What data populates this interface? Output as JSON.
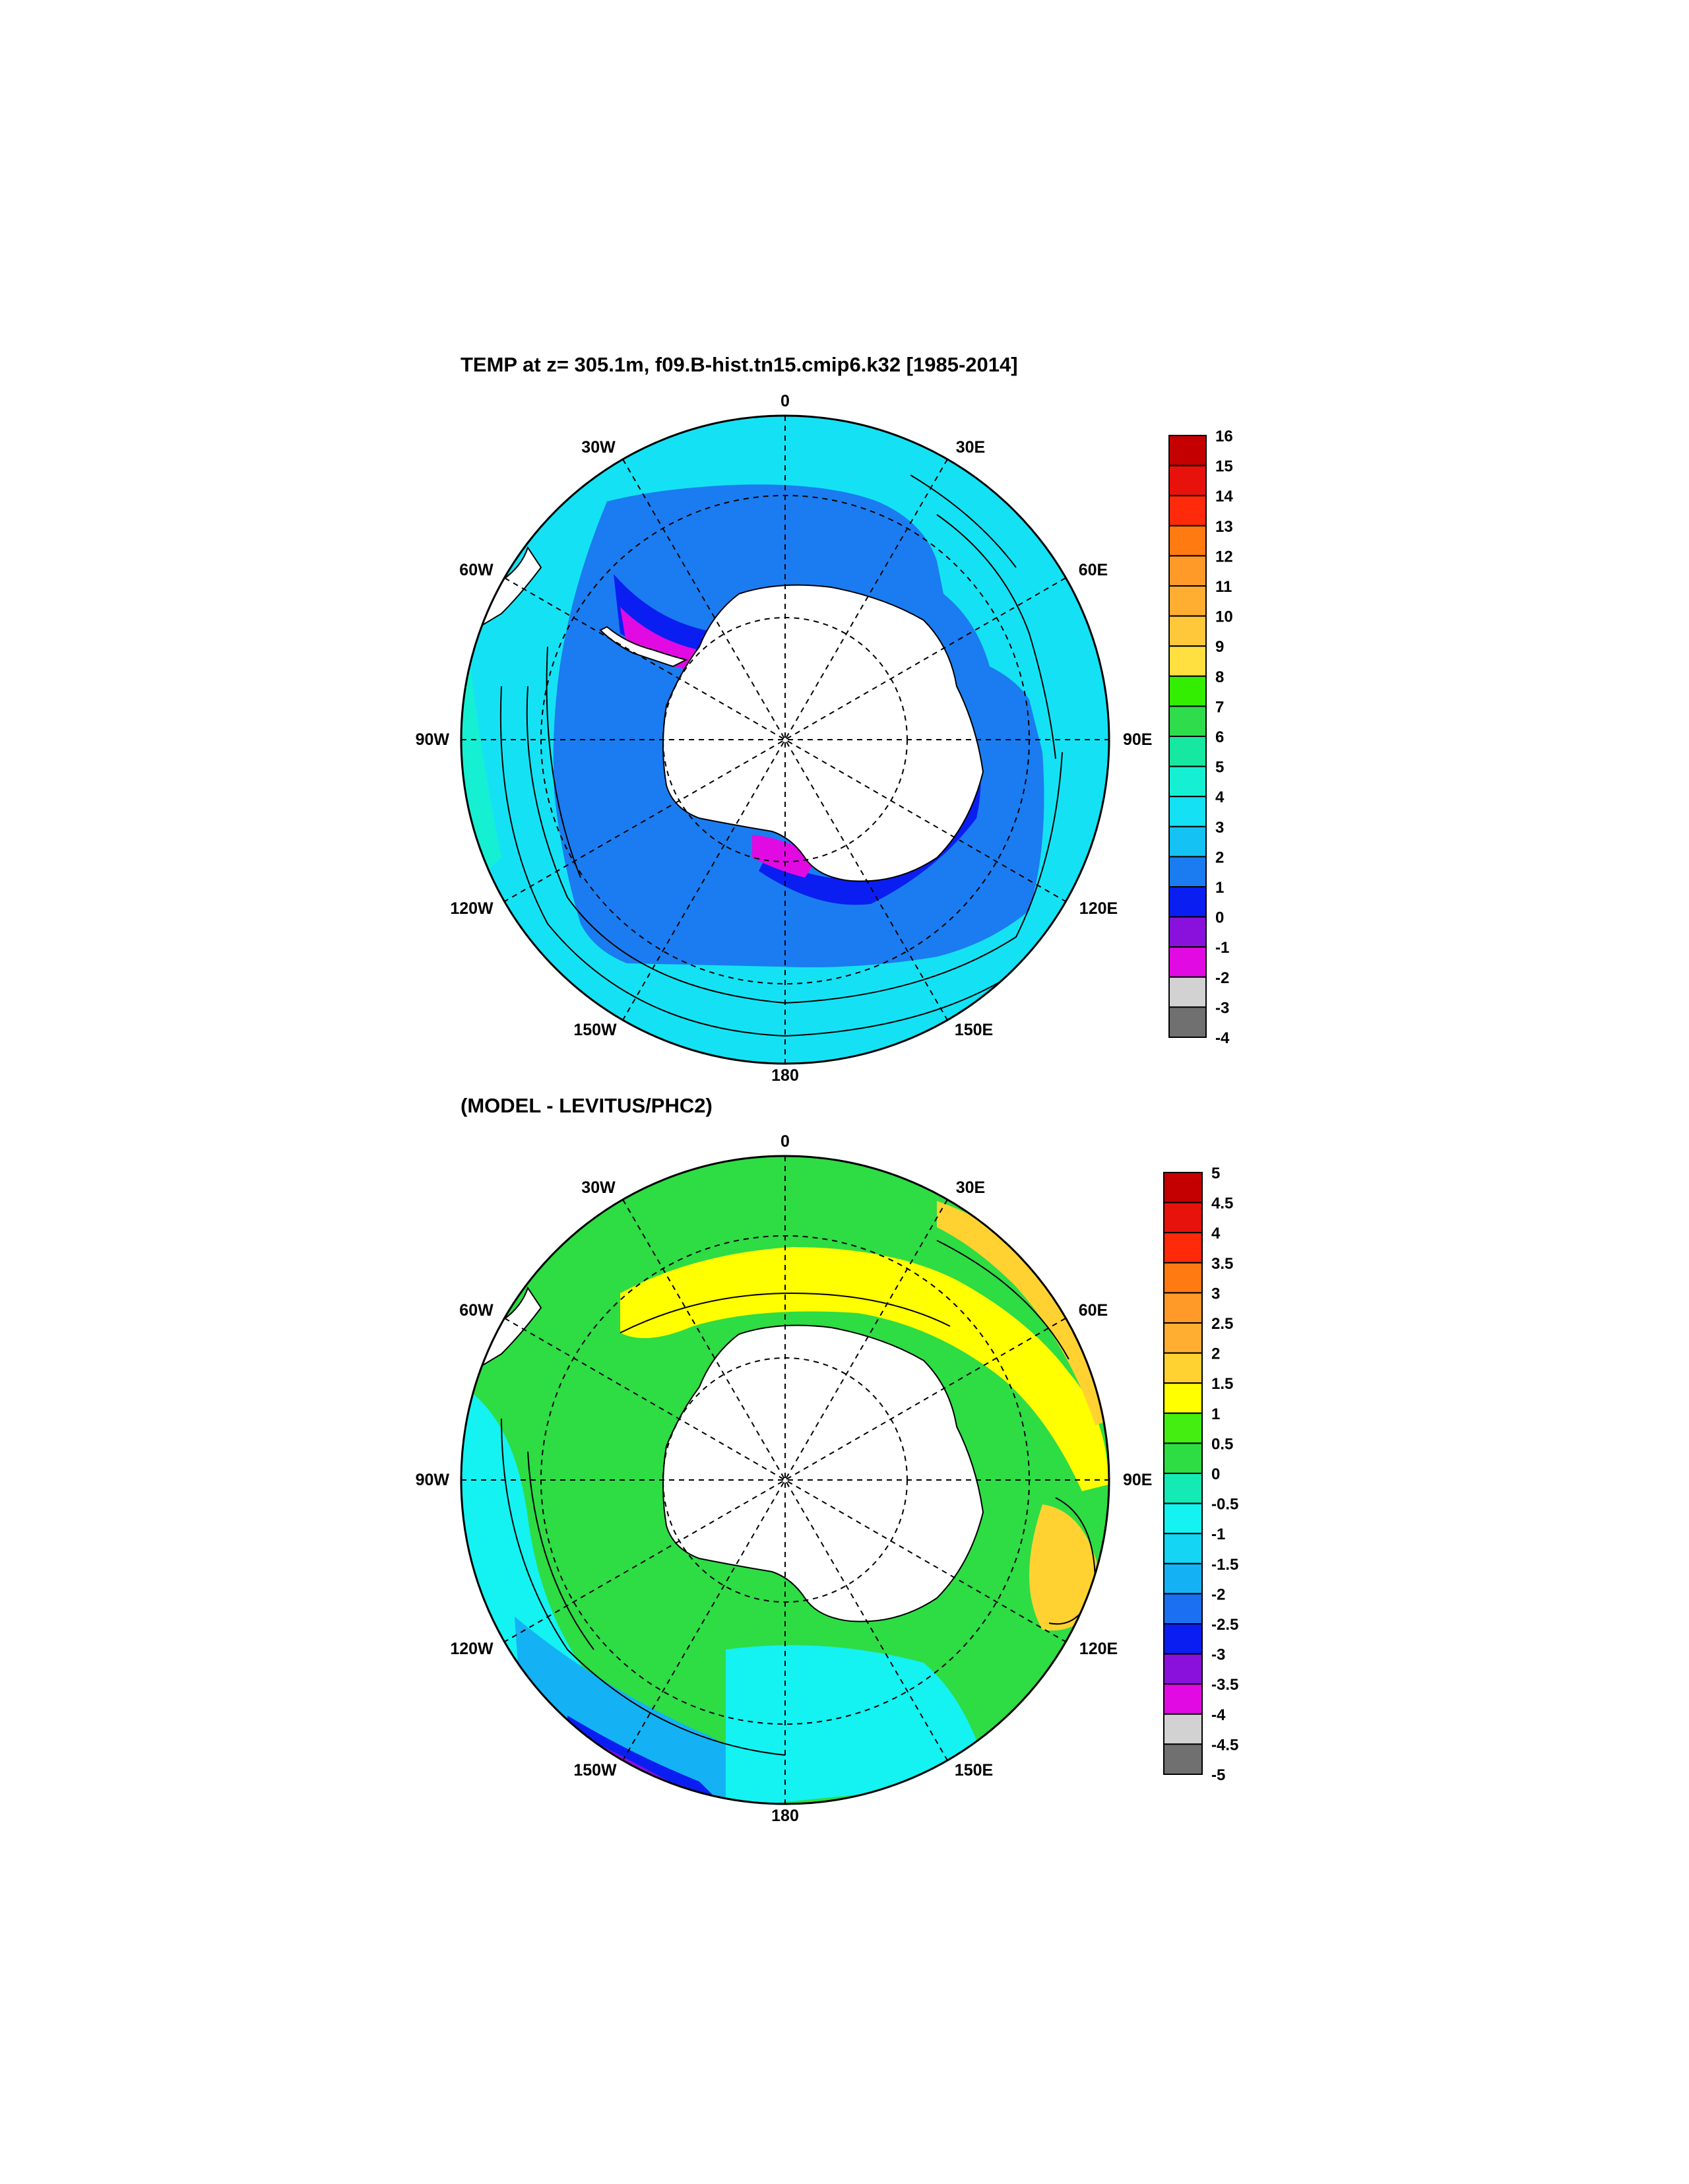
{
  "panels": [
    {
      "title": "TEMP at z= 305.1m, f09.B-hist.tn15.cmip6.k32 [1985-2014]",
      "lon_labels": {
        "top": "0",
        "top_left": "30W",
        "top_right": "30E",
        "upper_left": "60W",
        "upper_right": "60E",
        "left": "90W",
        "right": "90E",
        "lower_left": "120W",
        "lower_right": "120E",
        "bottom_left": "150W",
        "bottom_right": "150E",
        "bottom": "180"
      },
      "colorbar": {
        "labels": [
          "16",
          "15",
          "14",
          "13",
          "12",
          "11",
          "10",
          "9",
          "8",
          "7",
          "6",
          "5",
          "4",
          "3",
          "2",
          "1",
          "0",
          "-1",
          "-2",
          "-3",
          "-4"
        ],
        "colors": [
          "#c40000",
          "#e8120c",
          "#ff2a0a",
          "#ff7a10",
          "#ff9a28",
          "#ffae32",
          "#ffc83a",
          "#ffe040",
          "#33ee00",
          "#2fdc4c",
          "#16e8a2",
          "#16f0d2",
          "#14e2f4",
          "#14c2f4",
          "#1a7cf0",
          "#0a1ef2",
          "#8a10dc",
          "#e20ae2",
          "#d2d2d2",
          "#707070"
        ]
      },
      "fields": {
        "land": "#ffffff",
        "ocean_base": "#14e2f4"
      }
    },
    {
      "title": "(MODEL - LEVITUS/PHC2)",
      "lon_labels": {
        "top": "0",
        "top_left": "30W",
        "top_right": "30E",
        "upper_left": "60W",
        "upper_right": "60E",
        "left": "90W",
        "right": "90E",
        "lower_left": "120W",
        "lower_right": "120E",
        "bottom_left": "150W",
        "bottom_right": "150E",
        "bottom": "180"
      },
      "colorbar": {
        "labels": [
          "5",
          "4.5",
          "4",
          "3.5",
          "3",
          "2.5",
          "2",
          "1.5",
          "1",
          "0.5",
          "0",
          "-0.5",
          "-1",
          "-1.5",
          "-2",
          "-2.5",
          "-3",
          "-3.5",
          "-4",
          "-4.5",
          "-5"
        ],
        "colors": [
          "#c40000",
          "#e8120c",
          "#ff2a0a",
          "#ff7a10",
          "#ff9a28",
          "#ffae32",
          "#ffd232",
          "#ffff00",
          "#44ee10",
          "#2edc44",
          "#14eab4",
          "#14f2f2",
          "#14d6f4",
          "#14b2f4",
          "#1a70f0",
          "#0a1ef2",
          "#8a10dc",
          "#e20ae2",
          "#d2d2d2",
          "#707070"
        ]
      },
      "fields": {
        "land": "#ffffff",
        "ocean_base": "#2edc44"
      }
    }
  ]
}
